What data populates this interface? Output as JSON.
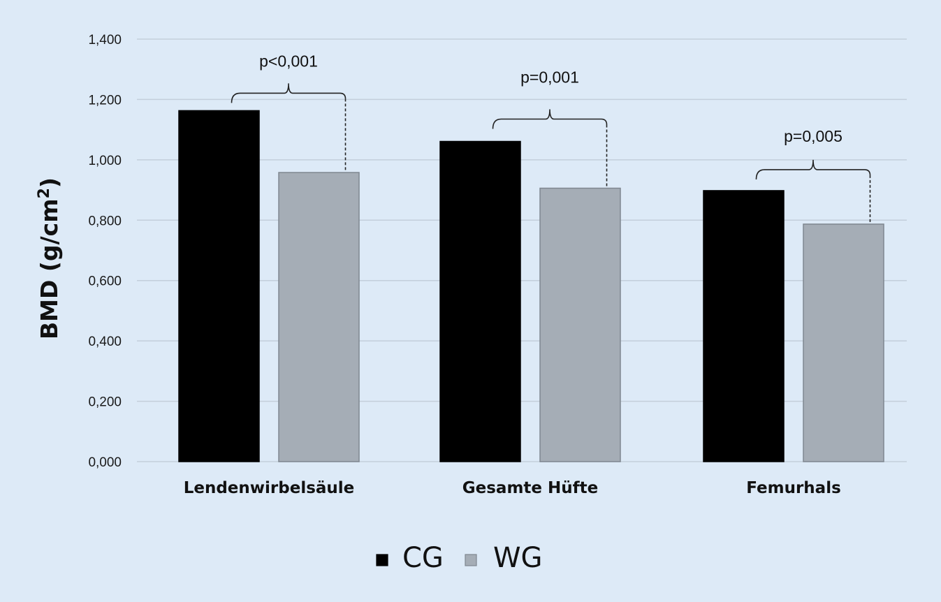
{
  "chart_data": {
    "type": "bar",
    "title": "",
    "xlabel": "",
    "ylabel_prefix": "BMD (g/cm",
    "ylabel_sup": "2",
    "ylabel_suffix": ")",
    "ylim": [
      0,
      1.4
    ],
    "yticks": [
      0,
      0.2,
      0.4,
      0.6,
      0.8,
      1.0,
      1.2,
      1.4
    ],
    "ytick_labels": [
      "0,000",
      "0,200",
      "0,400",
      "0,600",
      "0,800",
      "1,000",
      "1,200",
      "1,400"
    ],
    "grid": true,
    "categories": [
      "Lendenwirbelsäule",
      "Gesamte Hüfte",
      "Femurhals"
    ],
    "series": [
      {
        "name": "CG",
        "color": "#000000",
        "values": [
          1.163,
          1.061,
          0.898
        ]
      },
      {
        "name": "WG",
        "color": "#a5adb6",
        "values": [
          0.958,
          0.906,
          0.787
        ]
      }
    ],
    "annotations": [
      "p<0,001",
      "p=0,001",
      "p=0,005"
    ],
    "legend_position": "bottom-center"
  }
}
